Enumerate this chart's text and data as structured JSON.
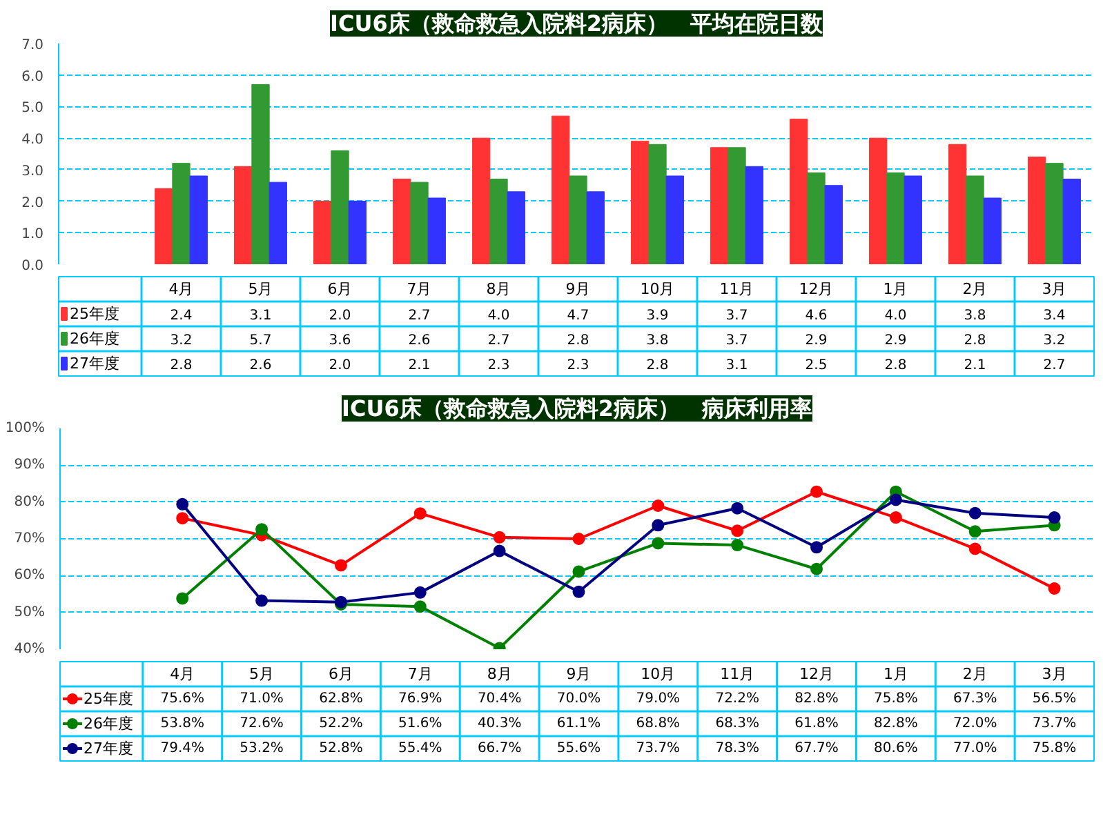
{
  "chart_data": [
    {
      "type": "bar",
      "title": "ICU6床（救命救急入院料2病床）　平均在院日数",
      "categories": [
        "4月",
        "5月",
        "6月",
        "7月",
        "8月",
        "9月",
        "10月",
        "11月",
        "12月",
        "1月",
        "2月",
        "3月"
      ],
      "ylim": [
        0,
        7
      ],
      "yticks": [
        {
          "value": 0,
          "label": "0.0"
        },
        {
          "value": 1,
          "label": "1.0"
        },
        {
          "value": 2,
          "label": "2.0"
        },
        {
          "value": 3,
          "label": "3.0"
        },
        {
          "value": 4,
          "label": "4.0"
        },
        {
          "value": 5,
          "label": "5.0"
        },
        {
          "value": 6,
          "label": "6.0"
        },
        {
          "value": 7,
          "label": "7.0"
        }
      ],
      "grid": "y",
      "legend": "bottom left",
      "series": [
        {
          "name": "25年度",
          "color": "#ff3333",
          "values": [
            2.4,
            3.1,
            2.0,
            2.7,
            4.0,
            4.7,
            3.9,
            3.7,
            4.6,
            4.0,
            3.8,
            3.4
          ],
          "value_labels": [
            "2.4",
            "3.1",
            "2.0",
            "2.7",
            "4.0",
            "4.7",
            "3.9",
            "3.7",
            "4.6",
            "4.0",
            "3.8",
            "3.4"
          ]
        },
        {
          "name": "26年度",
          "color": "#339933",
          "values": [
            3.2,
            5.7,
            3.6,
            2.6,
            2.7,
            2.8,
            3.8,
            3.7,
            2.9,
            2.9,
            2.8,
            3.2
          ],
          "value_labels": [
            "3.2",
            "5.7",
            "3.6",
            "2.6",
            "2.7",
            "2.8",
            "3.8",
            "3.7",
            "2.9",
            "2.9",
            "2.8",
            "3.2"
          ]
        },
        {
          "name": "27年度",
          "color": "#3333ff",
          "values": [
            2.8,
            2.6,
            2.0,
            2.1,
            2.3,
            2.3,
            2.8,
            3.1,
            2.5,
            2.8,
            2.1,
            2.7
          ],
          "value_labels": [
            "2.8",
            "2.6",
            "2.0",
            "2.1",
            "2.3",
            "2.3",
            "2.8",
            "3.1",
            "2.5",
            "2.8",
            "2.1",
            "2.7"
          ]
        }
      ]
    },
    {
      "type": "line",
      "title": "ICU6床（救命救急入院料2病床）　病床利用率",
      "categories": [
        "4月",
        "5月",
        "6月",
        "7月",
        "8月",
        "9月",
        "10月",
        "11月",
        "12月",
        "1月",
        "2月",
        "3月"
      ],
      "ylim": [
        40,
        100
      ],
      "yticks": [
        {
          "value": 40,
          "label": "40%"
        },
        {
          "value": 50,
          "label": "50%"
        },
        {
          "value": 60,
          "label": "60%"
        },
        {
          "value": 70,
          "label": "70%"
        },
        {
          "value": 80,
          "label": "80%"
        },
        {
          "value": 90,
          "label": "90%"
        },
        {
          "value": 100,
          "label": "100%"
        }
      ],
      "grid": "y",
      "legend": "bottom left",
      "marker": "circle",
      "line_style": "solid",
      "series": [
        {
          "name": "25年度",
          "color": "#ff0000",
          "values": [
            75.6,
            71.0,
            62.8,
            76.9,
            70.4,
            70.0,
            79.0,
            72.2,
            82.8,
            75.8,
            67.3,
            56.5
          ],
          "value_labels": [
            "75.6%",
            "71.0%",
            "62.8%",
            "76.9%",
            "70.4%",
            "70.0%",
            "79.0%",
            "72.2%",
            "82.8%",
            "75.8%",
            "67.3%",
            "56.5%"
          ]
        },
        {
          "name": "26年度",
          "color": "#008000",
          "values": [
            53.8,
            72.6,
            52.2,
            51.6,
            40.3,
            61.1,
            68.8,
            68.3,
            61.8,
            82.8,
            72.0,
            73.7
          ],
          "value_labels": [
            "53.8%",
            "72.6%",
            "52.2%",
            "51.6%",
            "40.3%",
            "61.1%",
            "68.8%",
            "68.3%",
            "61.8%",
            "82.8%",
            "72.0%",
            "73.7%"
          ]
        },
        {
          "name": "27年度",
          "color": "#000080",
          "values": [
            79.4,
            53.2,
            52.8,
            55.4,
            66.7,
            55.6,
            73.7,
            78.3,
            67.7,
            80.6,
            77.0,
            75.8
          ],
          "value_labels": [
            "79.4%",
            "53.2%",
            "52.8%",
            "55.4%",
            "66.7%",
            "55.6%",
            "73.7%",
            "78.3%",
            "67.7%",
            "80.6%",
            "77.0%",
            "75.8%"
          ]
        }
      ]
    }
  ]
}
